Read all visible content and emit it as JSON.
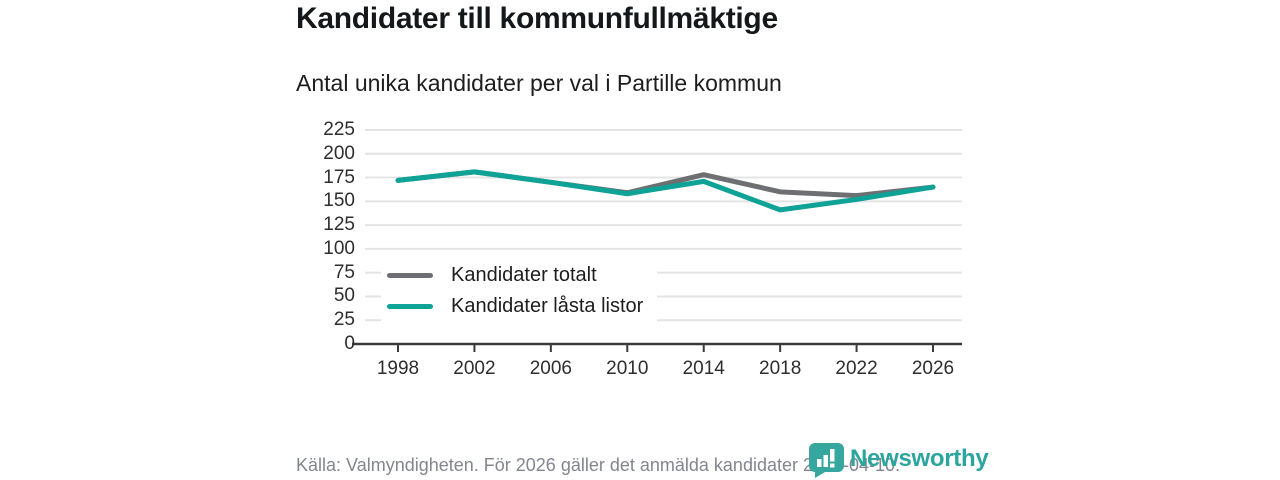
{
  "header": {
    "title": "Kandidater till kommunfullmäktige",
    "subtitle": "Antal unika kandidater per val i Partille kommun"
  },
  "footer": {
    "source": "Källa: Valmyndigheten. För 2026 gäller det anmälda kandidater 2026-04-10.",
    "brand": "Newsworthy"
  },
  "colors": {
    "grid": "#e4e4e4",
    "axis": "#3a3a3a",
    "tick": "#3a3a3a",
    "series_total": "#6e6f72",
    "series_locked": "#0fa296",
    "logo_teal": "#35a79f",
    "text_muted": "#83868e"
  },
  "chart_data": {
    "type": "line",
    "title": "Kandidater till kommunfullmäktige",
    "subtitle": "Antal unika kandidater per val i Partille kommun",
    "x": [
      1998,
      2002,
      2006,
      2010,
      2014,
      2018,
      2022,
      2026
    ],
    "series": [
      {
        "name": "Kandidater totalt",
        "color": "#6e6f72",
        "values": [
          172,
          181,
          170,
          159,
          178,
          160,
          156,
          165
        ]
      },
      {
        "name": "Kandidater låsta listor",
        "color": "#0fa296",
        "values": [
          172,
          181,
          170,
          158,
          171,
          141,
          152,
          165
        ]
      }
    ],
    "ylim": [
      0,
      225
    ],
    "ytick_step": 25,
    "grid": true,
    "legend_position": "inside-lower-left"
  }
}
